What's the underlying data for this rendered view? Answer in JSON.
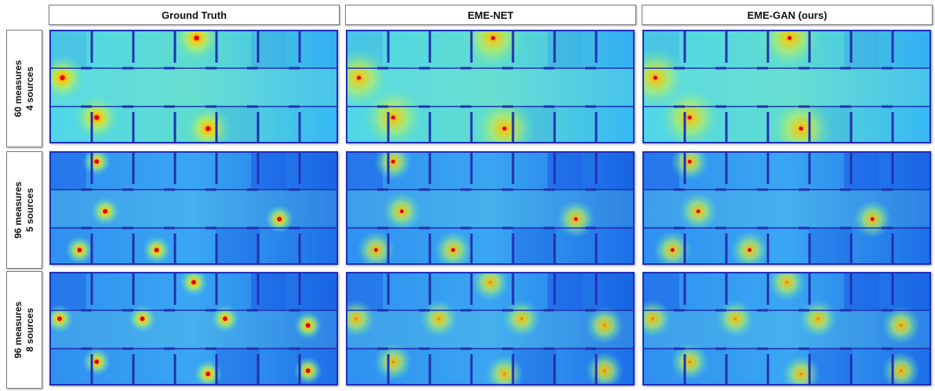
{
  "columns": [
    {
      "label": "Ground Truth",
      "key": "gt"
    },
    {
      "label": "EME-NET",
      "key": "net"
    },
    {
      "label": "EME-GAN (ours)",
      "key": "gan"
    }
  ],
  "rows": [
    {
      "line1": "60 measures",
      "line2": "4 sources",
      "sources": [
        [
          0.04,
          0.42
        ],
        [
          0.16,
          0.78
        ],
        [
          0.51,
          0.06
        ],
        [
          0.55,
          0.88
        ]
      ]
    },
    {
      "line1": "96 measures",
      "line2": "5 sources",
      "sources": [
        [
          0.16,
          0.08
        ],
        [
          0.19,
          0.53
        ],
        [
          0.1,
          0.88
        ],
        [
          0.37,
          0.88
        ],
        [
          0.8,
          0.6
        ]
      ]
    },
    {
      "line1": "96 measures",
      "line2": "8 sources",
      "sources": [
        [
          0.03,
          0.41
        ],
        [
          0.32,
          0.41
        ],
        [
          0.61,
          0.41
        ],
        [
          0.9,
          0.47
        ],
        [
          0.5,
          0.08
        ],
        [
          0.16,
          0.8
        ],
        [
          0.55,
          0.91
        ],
        [
          0.9,
          0.88
        ]
      ]
    }
  ],
  "palette": {
    "background": "#33aaff",
    "wall": "#2330b0",
    "hot": "#ff2a00",
    "warm": "#ffd400",
    "cool": "#1040e0"
  }
}
